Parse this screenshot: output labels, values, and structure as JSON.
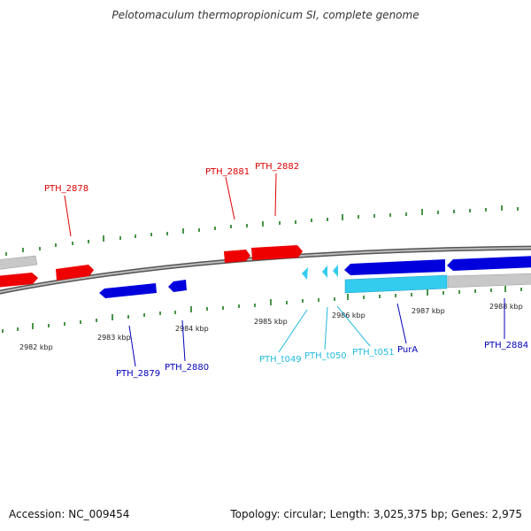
{
  "title": "Pelotomaculum thermopropionicum SI, complete genome",
  "accession": "Accession: NC_009454",
  "summary": "Topology: circular; Length: 3,025,375 bp; Genes: 2,975",
  "colors": {
    "forward_gene": "#ee0000",
    "reverse_gene": "#0000dd",
    "rna_gene": "#33ccee",
    "pseudo": "#c8c8c8",
    "tick": "#1a7a1a",
    "backbone": "#777777"
  },
  "kbp_ticks": [
    "2982 kbp",
    "2983 kbp",
    "2984 kbp",
    "2985 kbp",
    "2986 kbp",
    "2987 kbp",
    "2988 kbp"
  ],
  "gene_labels": [
    {
      "id": "PTH_2878",
      "color": "#dd0000"
    },
    {
      "id": "PTH_2881",
      "color": "#dd0000"
    },
    {
      "id": "PTH_2882",
      "color": "#dd0000"
    },
    {
      "id": "PTH_2879",
      "color": "#0000bb"
    },
    {
      "id": "PTH_2880",
      "color": "#0000bb"
    },
    {
      "id": "PTH_t049",
      "color": "#22bbdd"
    },
    {
      "id": "PTH_t050",
      "color": "#22bbdd"
    },
    {
      "id": "PTH_t051",
      "color": "#22bbdd"
    },
    {
      "id": "PurA",
      "color": "#0000bb"
    },
    {
      "id": "PTH_2884",
      "color": "#0000bb"
    }
  ]
}
